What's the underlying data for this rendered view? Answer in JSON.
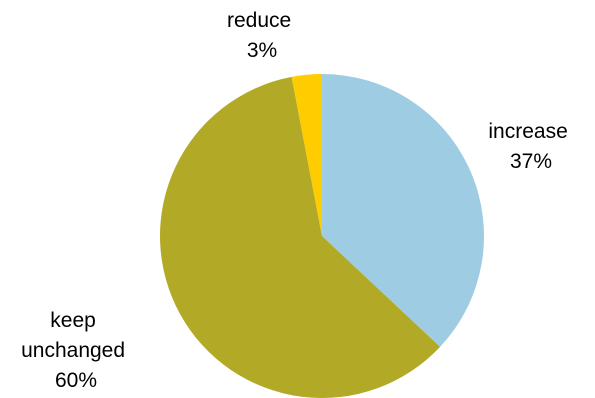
{
  "chart_data": {
    "type": "pie",
    "title": "",
    "start_angle_deg": 0,
    "direction": "clockwise",
    "slices": [
      {
        "label": "increase",
        "value": 37,
        "value_label": "37%",
        "color": "#9ECDE3"
      },
      {
        "label": "keep unchanged",
        "value": 60,
        "value_label": "60%",
        "color": "#B2AA27"
      },
      {
        "label": "reduce",
        "value": 3,
        "value_label": "3%",
        "color": "#FFCC00"
      }
    ],
    "legend": "none"
  }
}
